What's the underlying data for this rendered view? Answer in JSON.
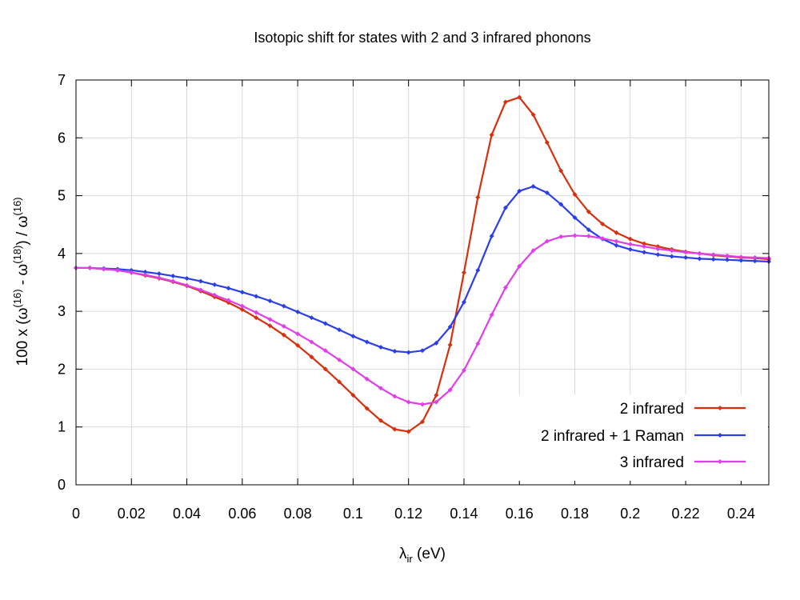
{
  "chart_data": {
    "type": "line",
    "title": "Isotopic shift for states with 2 and 3 infrared phonons",
    "xlabel": {
      "main": "λ",
      "sub": "ir",
      "rest": " (eV)"
    },
    "ylabel": {
      "p1": "100 x (ω",
      "s1": "(16)",
      "p2": " - ω",
      "s2": "(18)",
      "p3": ") / ω",
      "s3": "(16)"
    },
    "xlim": [
      0,
      0.25
    ],
    "ylim": [
      0,
      7
    ],
    "xticks": [
      "0",
      "0.02",
      "0.04",
      "0.06",
      "0.08",
      "0.1",
      "0.12",
      "0.14",
      "0.16",
      "0.18",
      "0.2",
      "0.22",
      "0.24"
    ],
    "yticks": [
      "0",
      "1",
      "2",
      "3",
      "4",
      "5",
      "6",
      "7"
    ],
    "grid": true,
    "legend_position": "bottom-right",
    "x": [
      0,
      0.005,
      0.01,
      0.015,
      0.02,
      0.025,
      0.03,
      0.035,
      0.04,
      0.045,
      0.05,
      0.055,
      0.06,
      0.065,
      0.07,
      0.075,
      0.08,
      0.085,
      0.09,
      0.095,
      0.1,
      0.105,
      0.11,
      0.115,
      0.12,
      0.125,
      0.13,
      0.135,
      0.14,
      0.145,
      0.15,
      0.155,
      0.16,
      0.165,
      0.17,
      0.175,
      0.18,
      0.185,
      0.19,
      0.195,
      0.2,
      0.205,
      0.21,
      0.215,
      0.22,
      0.225,
      0.23,
      0.235,
      0.24,
      0.245,
      0.25
    ],
    "series": [
      {
        "name": "2 infrared",
        "color": "#d6300e",
        "values": [
          3.75,
          3.75,
          3.73,
          3.71,
          3.67,
          3.62,
          3.57,
          3.51,
          3.44,
          3.35,
          3.25,
          3.15,
          3.03,
          2.89,
          2.75,
          2.59,
          2.41,
          2.21,
          2.0,
          1.78,
          1.55,
          1.32,
          1.11,
          0.96,
          0.92,
          1.09,
          1.55,
          2.42,
          3.67,
          4.97,
          6.05,
          6.62,
          6.7,
          6.4,
          5.92,
          5.43,
          5.02,
          4.72,
          4.51,
          4.36,
          4.25,
          4.17,
          4.12,
          4.07,
          4.03,
          4.0,
          3.97,
          3.95,
          3.93,
          3.92,
          3.9
        ]
      },
      {
        "name": "2 infrared + 1 Raman",
        "color": "#2b3fe8",
        "values": [
          3.75,
          3.75,
          3.74,
          3.73,
          3.71,
          3.68,
          3.65,
          3.61,
          3.57,
          3.52,
          3.46,
          3.4,
          3.33,
          3.26,
          3.18,
          3.09,
          2.99,
          2.89,
          2.79,
          2.68,
          2.57,
          2.47,
          2.38,
          2.31,
          2.29,
          2.32,
          2.45,
          2.73,
          3.16,
          3.71,
          4.3,
          4.79,
          5.08,
          5.16,
          5.05,
          4.85,
          4.62,
          4.41,
          4.25,
          4.14,
          4.07,
          4.02,
          3.98,
          3.95,
          3.93,
          3.91,
          3.9,
          3.89,
          3.88,
          3.87,
          3.86
        ]
      },
      {
        "name": "3 infrared",
        "color": "#e03ee8",
        "values": [
          3.75,
          3.75,
          3.73,
          3.71,
          3.67,
          3.63,
          3.58,
          3.52,
          3.45,
          3.37,
          3.28,
          3.19,
          3.09,
          2.98,
          2.86,
          2.74,
          2.61,
          2.47,
          2.32,
          2.16,
          2.0,
          1.83,
          1.67,
          1.53,
          1.43,
          1.39,
          1.43,
          1.64,
          1.98,
          2.44,
          2.94,
          3.41,
          3.78,
          4.05,
          4.21,
          4.29,
          4.31,
          4.3,
          4.26,
          4.21,
          4.16,
          4.12,
          4.08,
          4.05,
          4.02,
          4.0,
          3.98,
          3.96,
          3.94,
          3.93,
          3.92
        ]
      }
    ]
  }
}
